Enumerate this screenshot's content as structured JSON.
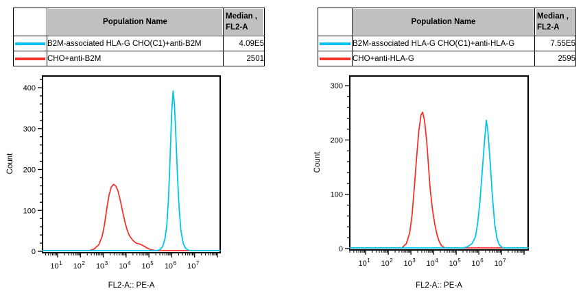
{
  "legend": {
    "population_header": "Population Name",
    "median_header_line1": "Median ,",
    "median_header_line2": "FL2-A"
  },
  "colors": {
    "cyan_series": "#00c4ef",
    "red_series": "#f2332b",
    "header_fill": "#c0c0c0",
    "axis": "#000000"
  },
  "chart_data": [
    {
      "type": "line",
      "subtype": "flow-histogram",
      "x_label": "FL2-A:: PE-A",
      "y_label": "Count",
      "x_scale": "log10",
      "x_range_log10": [
        0.34,
        8.12
      ],
      "x_decade_labels": [
        1,
        2,
        3,
        4,
        5,
        6,
        7
      ],
      "y_axis": {
        "min": 0,
        "max": 400,
        "major_tick": 100,
        "minor_tick": 20
      },
      "grid": false,
      "series": [
        {
          "name": "B2M-associated HLA-G CHO(C1)+anti-B2M",
          "color": "#00c4ef",
          "median_fl2a": "4.09E5",
          "points_log10x_count": [
            [
              0.34,
              0
            ],
            [
              5.35,
              0
            ],
            [
              5.5,
              3
            ],
            [
              5.6,
              10
            ],
            [
              5.7,
              28
            ],
            [
              5.78,
              60
            ],
            [
              5.85,
              120
            ],
            [
              5.9,
              185
            ],
            [
              5.95,
              265
            ],
            [
              6.0,
              340
            ],
            [
              6.06,
              390
            ],
            [
              6.12,
              355
            ],
            [
              6.18,
              280
            ],
            [
              6.25,
              185
            ],
            [
              6.32,
              105
            ],
            [
              6.4,
              50
            ],
            [
              6.5,
              18
            ],
            [
              6.6,
              6
            ],
            [
              6.7,
              2
            ],
            [
              6.8,
              0
            ],
            [
              8.12,
              0
            ]
          ]
        },
        {
          "name": "CHO+anti-B2M",
          "color": "#f2332b",
          "median_fl2a": "2501",
          "points_log10x_count": [
            [
              0.34,
              0
            ],
            [
              2.4,
              0
            ],
            [
              2.6,
              4
            ],
            [
              2.8,
              14
            ],
            [
              2.95,
              35
            ],
            [
              3.05,
              62
            ],
            [
              3.15,
              100
            ],
            [
              3.25,
              135
            ],
            [
              3.35,
              155
            ],
            [
              3.45,
              162
            ],
            [
              3.55,
              158
            ],
            [
              3.65,
              145
            ],
            [
              3.75,
              122
            ],
            [
              3.85,
              95
            ],
            [
              3.95,
              70
            ],
            [
              4.05,
              50
            ],
            [
              4.15,
              36
            ],
            [
              4.3,
              25
            ],
            [
              4.45,
              18
            ],
            [
              4.6,
              16
            ],
            [
              4.75,
              12
            ],
            [
              4.9,
              7
            ],
            [
              5.05,
              3
            ],
            [
              5.2,
              1
            ],
            [
              5.35,
              0
            ],
            [
              8.12,
              0
            ]
          ]
        }
      ]
    },
    {
      "type": "line",
      "subtype": "flow-histogram",
      "x_label": "FL2-A:: PE-A",
      "y_label": "Count",
      "x_scale": "log10",
      "x_range_log10": [
        0.3,
        8.18
      ],
      "x_decade_labels": [
        1,
        2,
        3,
        4,
        5,
        6,
        7
      ],
      "y_axis": {
        "min": 0,
        "max": 300,
        "major_tick": 100,
        "minor_tick": 20
      },
      "grid": false,
      "series": [
        {
          "name": "B2M-associated HLA-G CHO(C1)+anti-HLA-G",
          "color": "#00c4ef",
          "median_fl2a": "7.55E5",
          "points_log10x_count": [
            [
              0.3,
              0
            ],
            [
              5.3,
              0
            ],
            [
              5.5,
              2
            ],
            [
              5.7,
              8
            ],
            [
              5.85,
              20
            ],
            [
              5.95,
              45
            ],
            [
              6.05,
              85
            ],
            [
              6.15,
              140
            ],
            [
              6.25,
              195
            ],
            [
              6.33,
              235
            ],
            [
              6.4,
              215
            ],
            [
              6.5,
              160
            ],
            [
              6.6,
              95
            ],
            [
              6.7,
              45
            ],
            [
              6.8,
              18
            ],
            [
              6.9,
              6
            ],
            [
              7.0,
              2
            ],
            [
              7.1,
              0
            ],
            [
              8.18,
              0
            ]
          ]
        },
        {
          "name": "CHO+anti-HLA-G",
          "color": "#f2332b",
          "median_fl2a": "2595",
          "points_log10x_count": [
            [
              0.3,
              0
            ],
            [
              2.6,
              0
            ],
            [
              2.8,
              8
            ],
            [
              2.95,
              28
            ],
            [
              3.05,
              60
            ],
            [
              3.15,
              110
            ],
            [
              3.25,
              165
            ],
            [
              3.35,
              215
            ],
            [
              3.45,
              245
            ],
            [
              3.52,
              250
            ],
            [
              3.6,
              235
            ],
            [
              3.7,
              195
            ],
            [
              3.78,
              150
            ],
            [
              3.85,
              110
            ],
            [
              3.95,
              72
            ],
            [
              4.05,
              45
            ],
            [
              4.15,
              25
            ],
            [
              4.25,
              12
            ],
            [
              4.35,
              4
            ],
            [
              4.5,
              0
            ],
            [
              8.18,
              0
            ]
          ]
        }
      ]
    }
  ]
}
